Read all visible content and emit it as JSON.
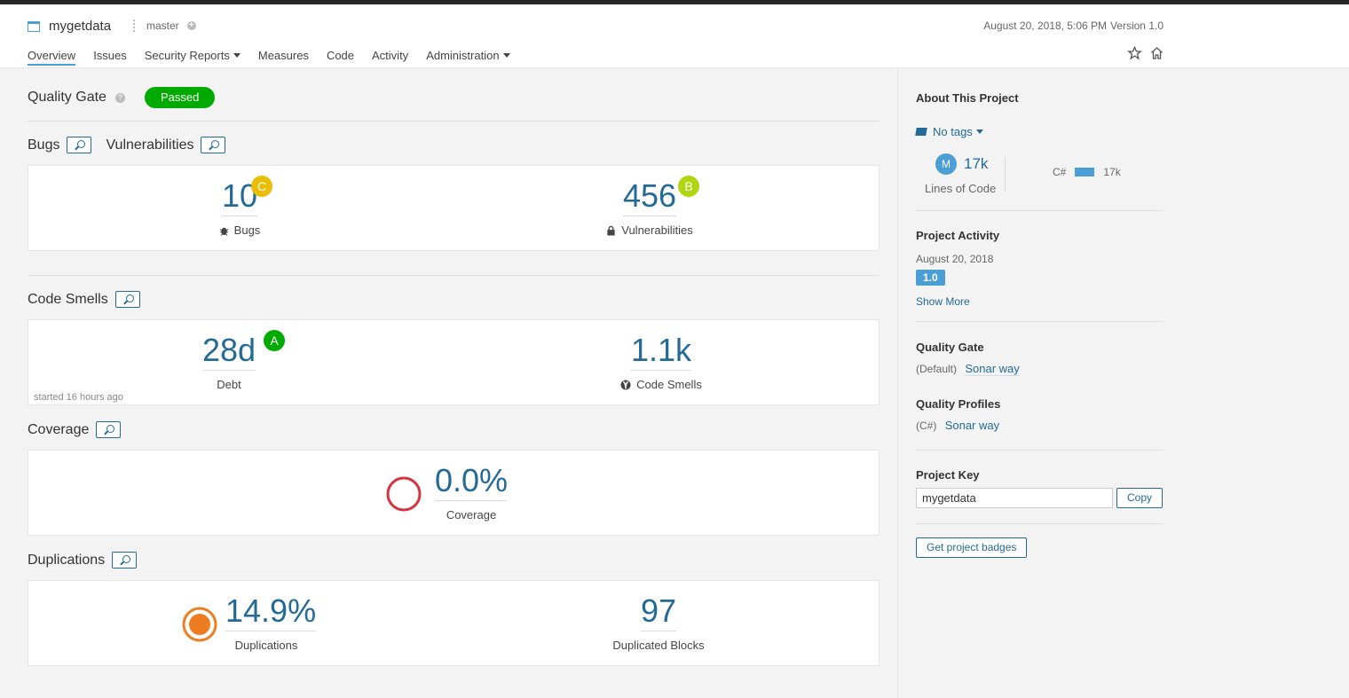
{
  "header": {
    "project_name": "mygetdata",
    "branch": "master",
    "date": "August 20, 2018, 5:06 PM",
    "version": "Version 1.0",
    "nav": [
      "Overview",
      "Issues",
      "Security Reports",
      "Measures",
      "Code",
      "Activity",
      "Administration"
    ]
  },
  "quality_gate": {
    "label": "Quality Gate",
    "status": "Passed"
  },
  "bugs_vulns": {
    "title_bugs": "Bugs",
    "title_vulns": "Vulnerabilities",
    "bugs_value": "10",
    "bugs_rating": "C",
    "bugs_label": "Bugs",
    "vulns_value": "456",
    "vulns_rating": "B",
    "vulns_label": "Vulnerabilities"
  },
  "code_smells": {
    "title": "Code Smells",
    "debt_value": "28d",
    "debt_rating": "A",
    "debt_label": "Debt",
    "smells_value": "1.1k",
    "smells_label": "Code Smells",
    "note": "started 16 hours ago"
  },
  "coverage": {
    "title": "Coverage",
    "value": "0.0%",
    "label": "Coverage"
  },
  "duplications": {
    "title": "Duplications",
    "dup_value": "14.9%",
    "dup_label": "Duplications",
    "blocks_value": "97",
    "blocks_label": "Duplicated Blocks"
  },
  "sidebar": {
    "about_title": "About This Project",
    "tags": "No tags",
    "loc_letter": "M",
    "loc_value": "17k",
    "loc_label": "Lines of Code",
    "lang": "C#",
    "lang_value": "17k",
    "activity_title": "Project Activity",
    "activity_date": "August 20, 2018",
    "activity_version": "1.0",
    "show_more": "Show More",
    "gate_title": "Quality Gate",
    "gate_default": "(Default)",
    "gate_link": "Sonar way",
    "profiles_title": "Quality Profiles",
    "profiles_lang": "(C#)",
    "profiles_link": "Sonar way",
    "key_title": "Project Key",
    "key_value": "mygetdata",
    "copy": "Copy",
    "badges": "Get project badges"
  },
  "colors": {
    "accent": "#236a97",
    "passed": "#00aa00",
    "rating_a": "#00aa00",
    "rating_b": "#b0d513",
    "rating_c": "#eabe06",
    "coverage_bad": "#d4333f",
    "duplication": "#ed7d20"
  }
}
